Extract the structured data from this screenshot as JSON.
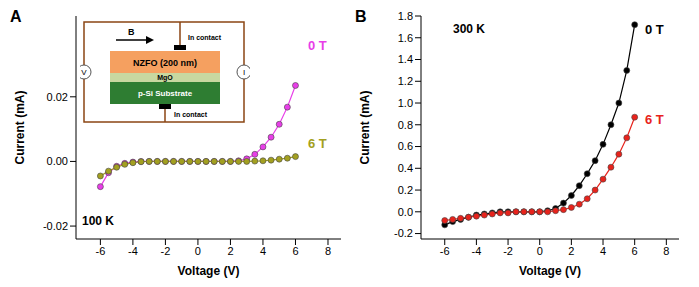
{
  "chart_data": [
    {
      "type": "line",
      "panel": "A",
      "x_label": "Voltage (V)",
      "y_label": "Current (mA)",
      "annotations": [
        "100 K"
      ],
      "x": [
        -6,
        -5.5,
        -5,
        -4.5,
        -4,
        -3.5,
        -3,
        -2.5,
        -2,
        -1.5,
        -1,
        -0.5,
        0,
        0.5,
        1,
        1.5,
        2,
        2.5,
        3,
        3.5,
        4,
        4.5,
        5,
        5.5,
        6
      ],
      "xlim": [
        -7.5,
        8.8
      ],
      "xticks": [
        -6,
        -4,
        -2,
        0,
        2,
        4,
        6,
        8
      ],
      "ylim": [
        -0.024,
        0.045
      ],
      "yticks": [
        -0.02,
        {
          "value": 0,
          "label": "0.00"
        },
        0.02
      ],
      "marker": "circle",
      "series": [
        {
          "name": "0 T",
          "color": "#e83ee8",
          "values": [
            -0.0078,
            -0.0035,
            -0.0015,
            -0.0006,
            -0.0002,
            0,
            0,
            0,
            0,
            0,
            0,
            0,
            0,
            0,
            0,
            0,
            0,
            0.0002,
            0.0008,
            0.0022,
            0.0045,
            0.0075,
            0.0115,
            0.0168,
            0.0235
          ]
        },
        {
          "name": "6 T",
          "color": "#a3a020",
          "values": [
            -0.0045,
            -0.003,
            -0.0018,
            -0.0009,
            -0.0004,
            -0.0001,
            0,
            0,
            0,
            0,
            0,
            0,
            0,
            0,
            0,
            0,
            0,
            0,
            0,
            0.0001,
            0.0002,
            0.0004,
            0.0007,
            0.001,
            0.0015
          ]
        }
      ],
      "inset": {
        "field": "B",
        "top_contact": "In contact",
        "layers": [
          "NZFO (200 nm)",
          "MgO",
          "p-Si Substrate"
        ],
        "bottom_contact": "In contact",
        "voltmeter": "V",
        "ammeter": "I"
      }
    },
    {
      "type": "line",
      "panel": "B",
      "x_label": "Voltage (V)",
      "y_label": "Current (mA)",
      "annotations": [
        "300 K"
      ],
      "x": [
        -6,
        -5.5,
        -5,
        -4.5,
        -4,
        -3.5,
        -3,
        -2.5,
        -2,
        -1.5,
        -1,
        -0.5,
        0,
        0.5,
        1,
        1.5,
        2,
        2.5,
        3,
        3.5,
        4,
        4.5,
        5,
        5.5,
        6
      ],
      "xlim": [
        -7.5,
        8.8
      ],
      "xticks": [
        -6,
        -4,
        -2,
        0,
        2,
        4,
        6,
        8
      ],
      "ylim": [
        -0.25,
        1.8
      ],
      "yticks": [
        -0.2,
        {
          "value": 0,
          "label": "0.0"
        },
        0.2,
        0.4,
        0.6,
        0.8,
        {
          "value": 1,
          "label": "1.0"
        },
        1.2,
        1.4,
        1.6,
        1.8
      ],
      "marker": "circle",
      "series": [
        {
          "name": "0 T",
          "color": "#000000",
          "values": [
            -0.12,
            -0.09,
            -0.07,
            -0.05,
            -0.03,
            -0.02,
            -0.01,
            0,
            0,
            0,
            0,
            0,
            0,
            0.01,
            0.03,
            0.08,
            0.15,
            0.24,
            0.35,
            0.47,
            0.62,
            0.8,
            1.0,
            1.3,
            1.72
          ]
        },
        {
          "name": "6 T",
          "color": "#e8231c",
          "values": [
            -0.08,
            -0.07,
            -0.06,
            -0.05,
            -0.04,
            -0.03,
            -0.02,
            -0.01,
            -0.01,
            0,
            0,
            0,
            0,
            0,
            0.01,
            0.02,
            0.04,
            0.07,
            0.12,
            0.2,
            0.3,
            0.41,
            0.53,
            0.68,
            0.87
          ]
        }
      ]
    }
  ]
}
